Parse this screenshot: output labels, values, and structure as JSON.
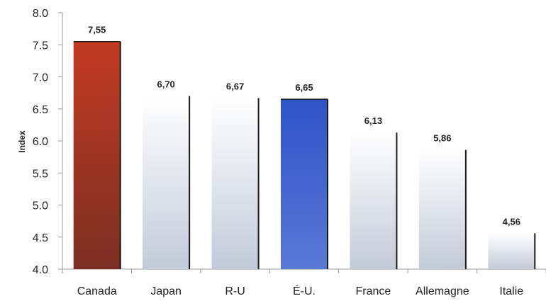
{
  "chart_data": {
    "type": "bar",
    "title": "",
    "xlabel": "",
    "ylabel": "Index",
    "ylim": [
      4.0,
      8.0
    ],
    "yticks": [
      "4.0",
      "4.5",
      "5.0",
      "5.5",
      "6.0",
      "6.5",
      "7.0",
      "7.5",
      "8.0"
    ],
    "ytick_values": [
      4.0,
      4.5,
      5.0,
      5.5,
      6.0,
      6.5,
      7.0,
      7.5,
      8.0
    ],
    "grid": false,
    "legend": "none",
    "categories": [
      "Canada",
      "Japan",
      "R-U",
      "É-U.",
      "France",
      "Allemagne",
      "Italie"
    ],
    "values": [
      7.55,
      6.7,
      6.67,
      6.65,
      6.13,
      5.86,
      4.56
    ],
    "value_labels": [
      "7,55",
      "6,70",
      "6,67",
      "6,65",
      "6,13",
      "5,86",
      "4,56"
    ],
    "bar_styles": [
      "red",
      "silver",
      "silver",
      "blue",
      "silver",
      "silver",
      "silver"
    ],
    "colors": {
      "red_top": "#c23a22",
      "red_bottom": "#7a2f22",
      "blue_top": "#2f53c8",
      "blue_bottom": "#5b78d6",
      "silver_top": "#ffffff",
      "silver_bottom": "#c3cad8",
      "bar_edge": "#1a1a1a",
      "axis": "#999999"
    }
  }
}
